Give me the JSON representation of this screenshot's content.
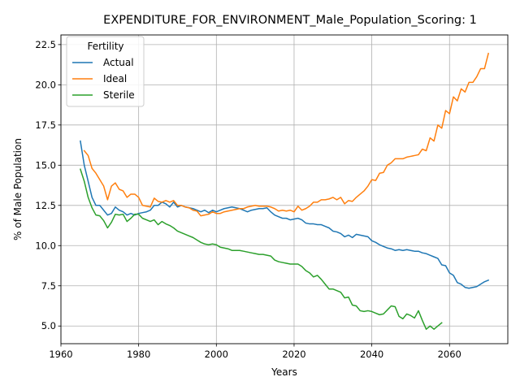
{
  "chart_data": {
    "type": "line",
    "title": "EXPENDITURE_FOR_ENVIRONMENT_Male_Population_Scoring: 1",
    "xlabel": "Years",
    "ylabel": "% of Male Population",
    "xlim": [
      1960,
      2075
    ],
    "ylim": [
      3.9,
      23.1
    ],
    "xticks": [
      1960,
      1980,
      2000,
      2020,
      2040,
      2060
    ],
    "yticks": [
      5.0,
      7.5,
      10.0,
      12.5,
      15.0,
      17.5,
      20.0,
      22.5
    ],
    "grid": true,
    "legend": {
      "title": "Fertility",
      "placement": "upper-left"
    },
    "series": [
      {
        "name": "Actual",
        "color": "#1f77b4",
        "points": [
          [
            1965,
            16.5
          ],
          [
            1966,
            15.0
          ],
          [
            1967,
            14.0
          ],
          [
            1968,
            13.0
          ],
          [
            1969,
            12.5
          ],
          [
            1970,
            12.5
          ],
          [
            1971,
            12.2
          ],
          [
            1972,
            11.9
          ],
          [
            1973,
            12.0
          ],
          [
            1974,
            12.4
          ],
          [
            1975,
            12.2
          ],
          [
            1976,
            12.1
          ],
          [
            1977,
            11.9
          ],
          [
            1978,
            12.0
          ],
          [
            1979,
            11.9
          ],
          [
            1980,
            12.0
          ],
          [
            1981,
            12.05
          ],
          [
            1982,
            12.1
          ],
          [
            1983,
            12.2
          ],
          [
            1984,
            12.5
          ],
          [
            1985,
            12.5
          ],
          [
            1986,
            12.7
          ],
          [
            1987,
            12.6
          ],
          [
            1988,
            12.4
          ],
          [
            1989,
            12.7
          ],
          [
            1990,
            12.4
          ],
          [
            1991,
            12.5
          ],
          [
            1992,
            12.4
          ],
          [
            1993,
            12.35
          ],
          [
            1994,
            12.3
          ],
          [
            1995,
            12.2
          ],
          [
            1996,
            12.1
          ],
          [
            1997,
            12.2
          ],
          [
            1998,
            12.05
          ],
          [
            1999,
            12.2
          ],
          [
            2000,
            12.1
          ],
          [
            2001,
            12.2
          ],
          [
            2002,
            12.3
          ],
          [
            2003,
            12.35
          ],
          [
            2004,
            12.4
          ],
          [
            2005,
            12.35
          ],
          [
            2006,
            12.3
          ],
          [
            2007,
            12.2
          ],
          [
            2008,
            12.1
          ],
          [
            2009,
            12.2
          ],
          [
            2010,
            12.25
          ],
          [
            2011,
            12.3
          ],
          [
            2012,
            12.3
          ],
          [
            2013,
            12.35
          ],
          [
            2014,
            12.1
          ],
          [
            2015,
            11.9
          ],
          [
            2016,
            11.8
          ],
          [
            2017,
            11.7
          ],
          [
            2018,
            11.7
          ],
          [
            2019,
            11.6
          ],
          [
            2020,
            11.65
          ],
          [
            2021,
            11.7
          ],
          [
            2022,
            11.6
          ],
          [
            2023,
            11.4
          ],
          [
            2024,
            11.35
          ],
          [
            2025,
            11.35
          ],
          [
            2026,
            11.3
          ],
          [
            2027,
            11.3
          ],
          [
            2028,
            11.2
          ],
          [
            2029,
            11.1
          ],
          [
            2030,
            10.9
          ],
          [
            2031,
            10.85
          ],
          [
            2032,
            10.75
          ],
          [
            2033,
            10.55
          ],
          [
            2034,
            10.65
          ],
          [
            2035,
            10.5
          ],
          [
            2036,
            10.7
          ],
          [
            2037,
            10.65
          ],
          [
            2038,
            10.6
          ],
          [
            2039,
            10.55
          ],
          [
            2040,
            10.3
          ],
          [
            2041,
            10.2
          ],
          [
            2042,
            10.05
          ],
          [
            2043,
            9.95
          ],
          [
            2044,
            9.85
          ],
          [
            2045,
            9.8
          ],
          [
            2046,
            9.7
          ],
          [
            2047,
            9.75
          ],
          [
            2048,
            9.7
          ],
          [
            2049,
            9.75
          ],
          [
            2050,
            9.7
          ],
          [
            2051,
            9.65
          ],
          [
            2052,
            9.65
          ],
          [
            2053,
            9.55
          ],
          [
            2054,
            9.5
          ],
          [
            2055,
            9.4
          ],
          [
            2056,
            9.3
          ],
          [
            2057,
            9.2
          ],
          [
            2058,
            8.8
          ],
          [
            2059,
            8.75
          ],
          [
            2060,
            8.3
          ],
          [
            2061,
            8.15
          ],
          [
            2062,
            7.7
          ],
          [
            2063,
            7.6
          ],
          [
            2064,
            7.4
          ],
          [
            2065,
            7.35
          ],
          [
            2066,
            7.4
          ],
          [
            2067,
            7.45
          ],
          [
            2068,
            7.6
          ],
          [
            2069,
            7.75
          ],
          [
            2070,
            7.85
          ]
        ]
      },
      {
        "name": "Ideal",
        "color": "#ff7f0e",
        "points": [
          [
            1966,
            15.9
          ],
          [
            1967,
            15.6
          ],
          [
            1968,
            14.8
          ],
          [
            1969,
            14.5
          ],
          [
            1970,
            14.1
          ],
          [
            1971,
            13.7
          ],
          [
            1972,
            12.85
          ],
          [
            1973,
            13.7
          ],
          [
            1974,
            13.9
          ],
          [
            1975,
            13.5
          ],
          [
            1976,
            13.4
          ],
          [
            1977,
            13.0
          ],
          [
            1978,
            13.2
          ],
          [
            1979,
            13.2
          ],
          [
            1980,
            13.0
          ],
          [
            1981,
            12.5
          ],
          [
            1982,
            12.45
          ],
          [
            1983,
            12.4
          ],
          [
            1984,
            12.95
          ],
          [
            1985,
            12.75
          ],
          [
            1986,
            12.7
          ],
          [
            1987,
            12.8
          ],
          [
            1988,
            12.7
          ],
          [
            1989,
            12.8
          ],
          [
            1990,
            12.5
          ],
          [
            1991,
            12.5
          ],
          [
            1992,
            12.4
          ],
          [
            1993,
            12.35
          ],
          [
            1994,
            12.2
          ],
          [
            1995,
            12.15
          ],
          [
            1996,
            11.85
          ],
          [
            1997,
            11.9
          ],
          [
            1998,
            11.95
          ],
          [
            1999,
            12.1
          ],
          [
            2000,
            12.0
          ],
          [
            2001,
            12.0
          ],
          [
            2002,
            12.1
          ],
          [
            2003,
            12.15
          ],
          [
            2004,
            12.2
          ],
          [
            2005,
            12.25
          ],
          [
            2006,
            12.3
          ],
          [
            2007,
            12.3
          ],
          [
            2008,
            12.4
          ],
          [
            2009,
            12.45
          ],
          [
            2010,
            12.5
          ],
          [
            2011,
            12.45
          ],
          [
            2012,
            12.45
          ],
          [
            2013,
            12.45
          ],
          [
            2014,
            12.4
          ],
          [
            2015,
            12.3
          ],
          [
            2016,
            12.15
          ],
          [
            2017,
            12.2
          ],
          [
            2018,
            12.15
          ],
          [
            2019,
            12.2
          ],
          [
            2020,
            12.1
          ],
          [
            2021,
            12.45
          ],
          [
            2022,
            12.2
          ],
          [
            2023,
            12.3
          ],
          [
            2024,
            12.45
          ],
          [
            2025,
            12.7
          ],
          [
            2026,
            12.7
          ],
          [
            2027,
            12.85
          ],
          [
            2028,
            12.85
          ],
          [
            2029,
            12.9
          ],
          [
            2030,
            13.0
          ],
          [
            2031,
            12.85
          ],
          [
            2032,
            13.0
          ],
          [
            2033,
            12.6
          ],
          [
            2034,
            12.8
          ],
          [
            2035,
            12.75
          ],
          [
            2036,
            13.0
          ],
          [
            2037,
            13.2
          ],
          [
            2038,
            13.4
          ],
          [
            2039,
            13.7
          ],
          [
            2040,
            14.1
          ],
          [
            2041,
            14.05
          ],
          [
            2042,
            14.5
          ],
          [
            2043,
            14.55
          ],
          [
            2044,
            15.0
          ],
          [
            2045,
            15.15
          ],
          [
            2046,
            15.4
          ],
          [
            2047,
            15.4
          ],
          [
            2048,
            15.4
          ],
          [
            2049,
            15.5
          ],
          [
            2050,
            15.55
          ],
          [
            2051,
            15.6
          ],
          [
            2052,
            15.65
          ],
          [
            2053,
            16.0
          ],
          [
            2054,
            15.9
          ],
          [
            2055,
            16.7
          ],
          [
            2056,
            16.5
          ],
          [
            2057,
            17.5
          ],
          [
            2058,
            17.3
          ],
          [
            2059,
            18.4
          ],
          [
            2060,
            18.2
          ],
          [
            2061,
            19.25
          ],
          [
            2062,
            19.0
          ],
          [
            2063,
            19.75
          ],
          [
            2064,
            19.55
          ],
          [
            2065,
            20.15
          ],
          [
            2066,
            20.15
          ],
          [
            2067,
            20.5
          ],
          [
            2068,
            21.0
          ],
          [
            2069,
            21.0
          ],
          [
            2070,
            21.95
          ]
        ]
      },
      {
        "name": "Sterile",
        "color": "#2ca02c",
        "points": [
          [
            1965,
            14.75
          ],
          [
            1966,
            14.0
          ],
          [
            1967,
            13.0
          ],
          [
            1968,
            12.35
          ],
          [
            1969,
            11.9
          ],
          [
            1970,
            11.85
          ],
          [
            1971,
            11.55
          ],
          [
            1972,
            11.1
          ],
          [
            1973,
            11.45
          ],
          [
            1974,
            11.95
          ],
          [
            1975,
            11.9
          ],
          [
            1976,
            11.95
          ],
          [
            1977,
            11.5
          ],
          [
            1978,
            11.7
          ],
          [
            1979,
            11.95
          ],
          [
            1980,
            11.95
          ],
          [
            1981,
            11.7
          ],
          [
            1982,
            11.6
          ],
          [
            1983,
            11.5
          ],
          [
            1984,
            11.6
          ],
          [
            1985,
            11.3
          ],
          [
            1986,
            11.5
          ],
          [
            1987,
            11.35
          ],
          [
            1988,
            11.25
          ],
          [
            1989,
            11.1
          ],
          [
            1990,
            10.9
          ],
          [
            1991,
            10.8
          ],
          [
            1992,
            10.7
          ],
          [
            1993,
            10.6
          ],
          [
            1994,
            10.5
          ],
          [
            1995,
            10.35
          ],
          [
            1996,
            10.2
          ],
          [
            1997,
            10.1
          ],
          [
            1998,
            10.05
          ],
          [
            1999,
            10.1
          ],
          [
            2000,
            10.05
          ],
          [
            2001,
            9.9
          ],
          [
            2002,
            9.85
          ],
          [
            2003,
            9.8
          ],
          [
            2004,
            9.7
          ],
          [
            2005,
            9.7
          ],
          [
            2006,
            9.7
          ],
          [
            2007,
            9.65
          ],
          [
            2008,
            9.6
          ],
          [
            2009,
            9.55
          ],
          [
            2010,
            9.5
          ],
          [
            2011,
            9.45
          ],
          [
            2012,
            9.45
          ],
          [
            2013,
            9.4
          ],
          [
            2014,
            9.35
          ],
          [
            2015,
            9.1
          ],
          [
            2016,
            9.0
          ],
          [
            2017,
            8.95
          ],
          [
            2018,
            8.9
          ],
          [
            2019,
            8.85
          ],
          [
            2020,
            8.85
          ],
          [
            2021,
            8.85
          ],
          [
            2022,
            8.7
          ],
          [
            2023,
            8.45
          ],
          [
            2024,
            8.3
          ],
          [
            2025,
            8.05
          ],
          [
            2026,
            8.15
          ],
          [
            2027,
            7.9
          ],
          [
            2028,
            7.6
          ],
          [
            2029,
            7.3
          ],
          [
            2030,
            7.3
          ],
          [
            2031,
            7.2
          ],
          [
            2032,
            7.1
          ],
          [
            2033,
            6.75
          ],
          [
            2034,
            6.8
          ],
          [
            2035,
            6.3
          ],
          [
            2036,
            6.25
          ],
          [
            2037,
            5.95
          ],
          [
            2038,
            5.9
          ],
          [
            2039,
            5.95
          ],
          [
            2040,
            5.9
          ],
          [
            2041,
            5.8
          ],
          [
            2042,
            5.7
          ],
          [
            2043,
            5.75
          ],
          [
            2044,
            6.0
          ],
          [
            2045,
            6.25
          ],
          [
            2046,
            6.2
          ],
          [
            2047,
            5.6
          ],
          [
            2048,
            5.45
          ],
          [
            2049,
            5.75
          ],
          [
            2050,
            5.65
          ],
          [
            2051,
            5.5
          ],
          [
            2052,
            5.95
          ],
          [
            2053,
            5.35
          ],
          [
            2054,
            4.8
          ],
          [
            2055,
            5.0
          ],
          [
            2056,
            4.8
          ],
          [
            2057,
            5.0
          ],
          [
            2058,
            5.2
          ]
        ]
      }
    ]
  }
}
